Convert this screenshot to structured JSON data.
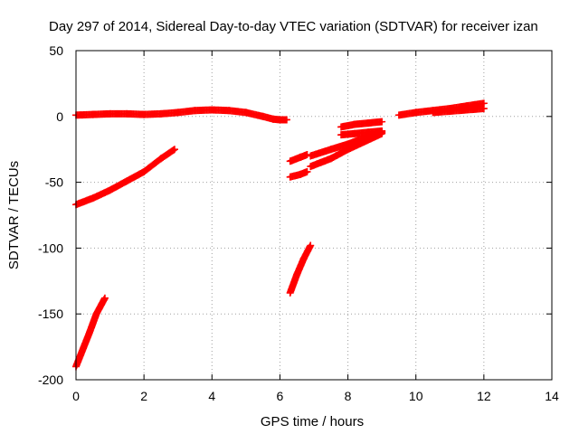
{
  "chart_data": {
    "type": "scatter",
    "title": "Day 297 of 2014, Sidereal Day-to-day VTEC variation (SDTVAR) for receiver izan",
    "xlabel": "GPS time / hours",
    "ylabel": "SDTVAR / TECUs",
    "xlim": [
      0,
      14
    ],
    "ylim": [
      -200,
      50
    ],
    "xticks": [
      "0",
      "2",
      "4",
      "6",
      "8",
      "10",
      "12",
      "14"
    ],
    "yticks": [
      "50",
      "0",
      "-50",
      "-100",
      "-150",
      "-200"
    ],
    "grid": true,
    "marker": "plus",
    "color": "#ff0000",
    "series": [
      {
        "x": [
          0.0,
          0.5,
          1.0,
          1.5,
          2.0,
          2.5,
          3.0,
          3.5,
          4.0,
          4.5,
          5.0,
          5.5,
          5.8,
          6.0,
          6.2
        ],
        "y": [
          1,
          1.5,
          2,
          2,
          1.5,
          2,
          3,
          4.5,
          5,
          4.5,
          3,
          0,
          -2,
          -2.5,
          -2.5
        ]
      },
      {
        "x": [
          0.0,
          0.5,
          1.0,
          1.5,
          2.0,
          2.5,
          2.9
        ],
        "y": [
          -67,
          -62,
          -56,
          -49,
          -42,
          -32,
          -25
        ]
      },
      {
        "x": [
          0.0,
          0.2,
          0.4,
          0.6,
          0.85
        ],
        "y": [
          -190,
          -177,
          -164,
          -150,
          -138
        ]
      },
      {
        "x": [
          6.3,
          6.6,
          6.8
        ],
        "y": [
          -34,
          -31,
          -29
        ]
      },
      {
        "x": [
          6.3,
          6.6,
          6.8
        ],
        "y": [
          -46,
          -44,
          -42
        ]
      },
      {
        "x": [
          6.3,
          6.5,
          6.7,
          6.9
        ],
        "y": [
          -134,
          -120,
          -108,
          -98
        ]
      },
      {
        "x": [
          6.9,
          7.5,
          8.0,
          8.5,
          9.0
        ],
        "y": [
          -30,
          -25,
          -21,
          -16,
          -12
        ]
      },
      {
        "x": [
          6.9,
          7.5,
          8.0,
          8.5,
          9.0
        ],
        "y": [
          -38,
          -32,
          -25,
          -19,
          -13
        ]
      },
      {
        "x": [
          7.8,
          8.2,
          8.6,
          9.0
        ],
        "y": [
          -14,
          -13,
          -12,
          -11
        ]
      },
      {
        "x": [
          7.8,
          8.2,
          8.6,
          9.0
        ],
        "y": [
          -8,
          -6,
          -5,
          -4
        ]
      },
      {
        "x": [
          9.5,
          10.0,
          10.5,
          11.0,
          11.5,
          12.0
        ],
        "y": [
          1,
          3,
          4.5,
          6,
          8,
          10
        ]
      },
      {
        "x": [
          10.5,
          11.0,
          11.5,
          12.0
        ],
        "y": [
          3,
          4,
          5,
          6
        ]
      }
    ]
  }
}
